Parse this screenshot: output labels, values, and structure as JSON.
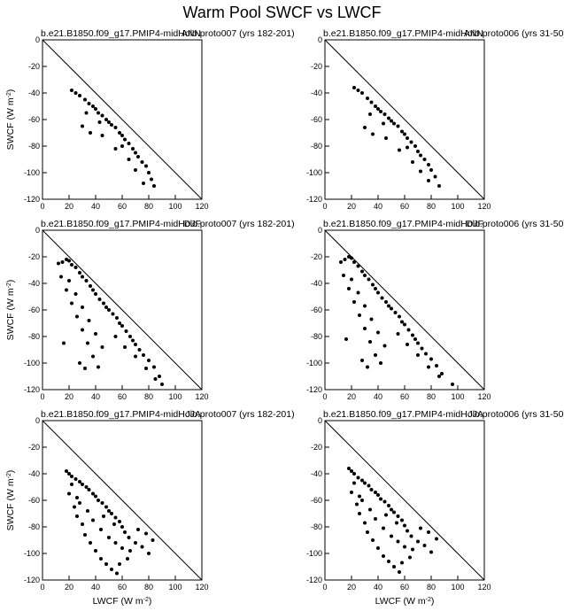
{
  "figure": {
    "title": "Warm Pool SWCF vs LWCF"
  },
  "chart_data": [
    {
      "type": "scatter",
      "panel_label": "ANN",
      "subtitle": "b.e21.B1850.f09_g17.PMIP4-midHolo.proto007 (yrs 182-201)",
      "xlabel": "",
      "ylabel": "SWCF (W m-2)",
      "xlim": [
        0,
        120
      ],
      "ylim": [
        -120,
        0
      ],
      "xticks": [
        0,
        20,
        40,
        60,
        80,
        100,
        120
      ],
      "yticks": [
        0,
        -20,
        -40,
        -60,
        -80,
        -100,
        -120
      ],
      "reference_line": "y = -x",
      "points": [
        [
          22,
          -38
        ],
        [
          25,
          -40
        ],
        [
          28,
          -42
        ],
        [
          32,
          -45
        ],
        [
          35,
          -48
        ],
        [
          38,
          -50
        ],
        [
          40,
          -52
        ],
        [
          42,
          -55
        ],
        [
          45,
          -57
        ],
        [
          48,
          -60
        ],
        [
          50,
          -62
        ],
        [
          52,
          -64
        ],
        [
          55,
          -66
        ],
        [
          58,
          -70
        ],
        [
          60,
          -72
        ],
        [
          62,
          -75
        ],
        [
          65,
          -78
        ],
        [
          68,
          -82
        ],
        [
          70,
          -85
        ],
        [
          72,
          -88
        ],
        [
          75,
          -92
        ],
        [
          78,
          -95
        ],
        [
          80,
          -100
        ],
        [
          82,
          -105
        ],
        [
          84,
          -110
        ],
        [
          30,
          -65
        ],
        [
          36,
          -70
        ],
        [
          45,
          -72
        ],
        [
          55,
          -82
        ],
        [
          65,
          -90
        ],
        [
          70,
          -98
        ],
        [
          76,
          -108
        ],
        [
          33,
          -55
        ],
        [
          43,
          -62
        ],
        [
          60,
          -80
        ]
      ]
    },
    {
      "type": "scatter",
      "panel_label": "ANN",
      "subtitle": "b.e21.B1850.f09_g17.PMIP4-midHolo.proto006 (yrs 31-50)",
      "xlabel": "",
      "ylabel": "",
      "xlim": [
        0,
        120
      ],
      "ylim": [
        -120,
        0
      ],
      "xticks": [
        0,
        20,
        40,
        60,
        80,
        100,
        120
      ],
      "yticks": [
        0,
        -20,
        -40,
        -60,
        -80,
        -100,
        -120
      ],
      "reference_line": "y = -x",
      "points": [
        [
          22,
          -36
        ],
        [
          25,
          -38
        ],
        [
          28,
          -40
        ],
        [
          32,
          -44
        ],
        [
          35,
          -47
        ],
        [
          38,
          -50
        ],
        [
          40,
          -52
        ],
        [
          42,
          -54
        ],
        [
          45,
          -56
        ],
        [
          48,
          -59
        ],
        [
          50,
          -61
        ],
        [
          52,
          -63
        ],
        [
          55,
          -65
        ],
        [
          58,
          -69
        ],
        [
          60,
          -71
        ],
        [
          62,
          -74
        ],
        [
          65,
          -77
        ],
        [
          68,
          -80
        ],
        [
          70,
          -84
        ],
        [
          72,
          -87
        ],
        [
          75,
          -90
        ],
        [
          78,
          -94
        ],
        [
          80,
          -98
        ],
        [
          83,
          -103
        ],
        [
          86,
          -110
        ],
        [
          30,
          -66
        ],
        [
          36,
          -71
        ],
        [
          46,
          -74
        ],
        [
          56,
          -83
        ],
        [
          66,
          -92
        ],
        [
          72,
          -99
        ],
        [
          78,
          -106
        ],
        [
          34,
          -56
        ],
        [
          44,
          -63
        ],
        [
          62,
          -81
        ]
      ]
    },
    {
      "type": "scatter",
      "panel_label": "DJF",
      "subtitle": "b.e21.B1850.f09_g17.PMIP4-midHolo.proto007 (yrs 182-201)",
      "xlabel": "",
      "ylabel": "SWCF (W m-2)",
      "xlim": [
        0,
        120
      ],
      "ylim": [
        -120,
        0
      ],
      "xticks": [
        0,
        20,
        40,
        60,
        80,
        100,
        120
      ],
      "yticks": [
        0,
        -20,
        -40,
        -60,
        -80,
        -100,
        -120
      ],
      "reference_line": "y = -x",
      "points": [
        [
          12,
          -25
        ],
        [
          15,
          -24
        ],
        [
          18,
          -22
        ],
        [
          20,
          -23
        ],
        [
          22,
          -26
        ],
        [
          25,
          -28
        ],
        [
          28,
          -32
        ],
        [
          30,
          -35
        ],
        [
          33,
          -38
        ],
        [
          36,
          -42
        ],
        [
          38,
          -45
        ],
        [
          40,
          -48
        ],
        [
          43,
          -52
        ],
        [
          46,
          -55
        ],
        [
          48,
          -58
        ],
        [
          50,
          -60
        ],
        [
          53,
          -63
        ],
        [
          56,
          -66
        ],
        [
          58,
          -70
        ],
        [
          60,
          -72
        ],
        [
          63,
          -76
        ],
        [
          66,
          -80
        ],
        [
          68,
          -83
        ],
        [
          70,
          -86
        ],
        [
          73,
          -90
        ],
        [
          76,
          -94
        ],
        [
          80,
          -98
        ],
        [
          84,
          -103
        ],
        [
          88,
          -110
        ],
        [
          14,
          -35
        ],
        [
          18,
          -45
        ],
        [
          22,
          -55
        ],
        [
          26,
          -65
        ],
        [
          30,
          -75
        ],
        [
          34,
          -85
        ],
        [
          38,
          -95
        ],
        [
          42,
          -103
        ],
        [
          20,
          -38
        ],
        [
          25,
          -48
        ],
        [
          30,
          -58
        ],
        [
          35,
          -68
        ],
        [
          40,
          -78
        ],
        [
          45,
          -88
        ],
        [
          16,
          -85
        ],
        [
          28,
          -100
        ],
        [
          32,
          -104
        ],
        [
          55,
          -80
        ],
        [
          62,
          -88
        ],
        [
          70,
          -95
        ],
        [
          78,
          -104
        ],
        [
          85,
          -112
        ],
        [
          90,
          -116
        ]
      ]
    },
    {
      "type": "scatter",
      "panel_label": "DJF",
      "subtitle": "b.e21.B1850.f09_g17.PMIP4-midHolo.proto006 (yrs 31-50)",
      "xlabel": "",
      "ylabel": "",
      "xlim": [
        0,
        120
      ],
      "ylim": [
        -120,
        0
      ],
      "xticks": [
        0,
        20,
        40,
        60,
        80,
        100,
        120
      ],
      "yticks": [
        0,
        -20,
        -40,
        -60,
        -80,
        -100,
        -120
      ],
      "reference_line": "y = -x",
      "points": [
        [
          12,
          -24
        ],
        [
          15,
          -22
        ],
        [
          18,
          -20
        ],
        [
          20,
          -21
        ],
        [
          22,
          -24
        ],
        [
          25,
          -27
        ],
        [
          28,
          -31
        ],
        [
          30,
          -34
        ],
        [
          33,
          -37
        ],
        [
          36,
          -41
        ],
        [
          38,
          -44
        ],
        [
          40,
          -47
        ],
        [
          43,
          -51
        ],
        [
          46,
          -54
        ],
        [
          48,
          -57
        ],
        [
          50,
          -59
        ],
        [
          53,
          -62
        ],
        [
          56,
          -65
        ],
        [
          58,
          -69
        ],
        [
          60,
          -71
        ],
        [
          63,
          -75
        ],
        [
          66,
          -79
        ],
        [
          68,
          -82
        ],
        [
          70,
          -85
        ],
        [
          73,
          -89
        ],
        [
          76,
          -93
        ],
        [
          80,
          -97
        ],
        [
          84,
          -102
        ],
        [
          88,
          -108
        ],
        [
          14,
          -34
        ],
        [
          18,
          -44
        ],
        [
          22,
          -54
        ],
        [
          26,
          -64
        ],
        [
          30,
          -74
        ],
        [
          34,
          -84
        ],
        [
          38,
          -94
        ],
        [
          42,
          -100
        ],
        [
          20,
          -37
        ],
        [
          25,
          -47
        ],
        [
          30,
          -57
        ],
        [
          35,
          -67
        ],
        [
          40,
          -77
        ],
        [
          45,
          -87
        ],
        [
          16,
          -82
        ],
        [
          28,
          -98
        ],
        [
          32,
          -103
        ],
        [
          55,
          -78
        ],
        [
          62,
          -86
        ],
        [
          70,
          -94
        ],
        [
          78,
          -103
        ],
        [
          86,
          -110
        ],
        [
          96,
          -116
        ]
      ]
    },
    {
      "type": "scatter",
      "panel_label": "JJA",
      "subtitle": "b.e21.B1850.f09_g17.PMIP4-midHolo.proto007 (yrs 182-201)",
      "xlabel": "LWCF (W m-2)",
      "ylabel": "SWCF (W m-2)",
      "xlim": [
        0,
        120
      ],
      "ylim": [
        -120,
        0
      ],
      "xticks": [
        0,
        20,
        40,
        60,
        80,
        100,
        120
      ],
      "yticks": [
        0,
        -20,
        -40,
        -60,
        -80,
        -100,
        -120
      ],
      "reference_line": "y = -x",
      "points": [
        [
          18,
          -38
        ],
        [
          20,
          -40
        ],
        [
          22,
          -42
        ],
        [
          25,
          -44
        ],
        [
          28,
          -46
        ],
        [
          30,
          -48
        ],
        [
          33,
          -50
        ],
        [
          35,
          -52
        ],
        [
          38,
          -55
        ],
        [
          40,
          -57
        ],
        [
          42,
          -60
        ],
        [
          45,
          -62
        ],
        [
          48,
          -65
        ],
        [
          50,
          -68
        ],
        [
          52,
          -70
        ],
        [
          55,
          -73
        ],
        [
          58,
          -76
        ],
        [
          60,
          -80
        ],
        [
          62,
          -84
        ],
        [
          65,
          -88
        ],
        [
          20,
          -55
        ],
        [
          24,
          -65
        ],
        [
          26,
          -72
        ],
        [
          30,
          -78
        ],
        [
          32,
          -86
        ],
        [
          36,
          -92
        ],
        [
          40,
          -98
        ],
        [
          44,
          -104
        ],
        [
          48,
          -108
        ],
        [
          52,
          -112
        ],
        [
          56,
          -115
        ],
        [
          28,
          -62
        ],
        [
          34,
          -68
        ],
        [
          38,
          -75
        ],
        [
          44,
          -82
        ],
        [
          50,
          -88
        ],
        [
          55,
          -92
        ],
        [
          60,
          -96
        ],
        [
          66,
          -98
        ],
        [
          70,
          -92
        ],
        [
          75,
          -95
        ],
        [
          80,
          -100
        ],
        [
          83,
          -90
        ],
        [
          78,
          -85
        ],
        [
          72,
          -82
        ],
        [
          22,
          -48
        ],
        [
          26,
          -58
        ],
        [
          46,
          -72
        ],
        [
          54,
          -78
        ],
        [
          64,
          -104
        ],
        [
          58,
          -108
        ]
      ]
    },
    {
      "type": "scatter",
      "panel_label": "JJA",
      "subtitle": "b.e21.B1850.f09_g17.PMIP4-midHolo.proto006 (yrs 31-50)",
      "xlabel": "LWCF (W m-2)",
      "ylabel": "",
      "xlim": [
        0,
        120
      ],
      "ylim": [
        -120,
        0
      ],
      "xticks": [
        0,
        20,
        40,
        60,
        80,
        100,
        120
      ],
      "yticks": [
        0,
        -20,
        -40,
        -60,
        -80,
        -100,
        -120
      ],
      "reference_line": "y = -x",
      "points": [
        [
          18,
          -36
        ],
        [
          20,
          -38
        ],
        [
          22,
          -40
        ],
        [
          25,
          -43
        ],
        [
          28,
          -45
        ],
        [
          30,
          -47
        ],
        [
          33,
          -49
        ],
        [
          35,
          -52
        ],
        [
          38,
          -54
        ],
        [
          40,
          -56
        ],
        [
          42,
          -59
        ],
        [
          45,
          -61
        ],
        [
          48,
          -64
        ],
        [
          50,
          -67
        ],
        [
          52,
          -69
        ],
        [
          55,
          -72
        ],
        [
          58,
          -75
        ],
        [
          60,
          -79
        ],
        [
          62,
          -83
        ],
        [
          65,
          -87
        ],
        [
          20,
          -54
        ],
        [
          24,
          -63
        ],
        [
          26,
          -70
        ],
        [
          30,
          -77
        ],
        [
          32,
          -84
        ],
        [
          36,
          -90
        ],
        [
          40,
          -96
        ],
        [
          44,
          -102
        ],
        [
          48,
          -106
        ],
        [
          52,
          -110
        ],
        [
          56,
          -114
        ],
        [
          28,
          -60
        ],
        [
          34,
          -67
        ],
        [
          38,
          -74
        ],
        [
          44,
          -81
        ],
        [
          50,
          -87
        ],
        [
          55,
          -91
        ],
        [
          60,
          -95
        ],
        [
          66,
          -97
        ],
        [
          70,
          -91
        ],
        [
          75,
          -94
        ],
        [
          80,
          -99
        ],
        [
          84,
          -89
        ],
        [
          78,
          -84
        ],
        [
          72,
          -81
        ],
        [
          22,
          -47
        ],
        [
          26,
          -57
        ],
        [
          46,
          -71
        ],
        [
          54,
          -77
        ],
        [
          64,
          -103
        ],
        [
          58,
          -107
        ]
      ]
    }
  ]
}
